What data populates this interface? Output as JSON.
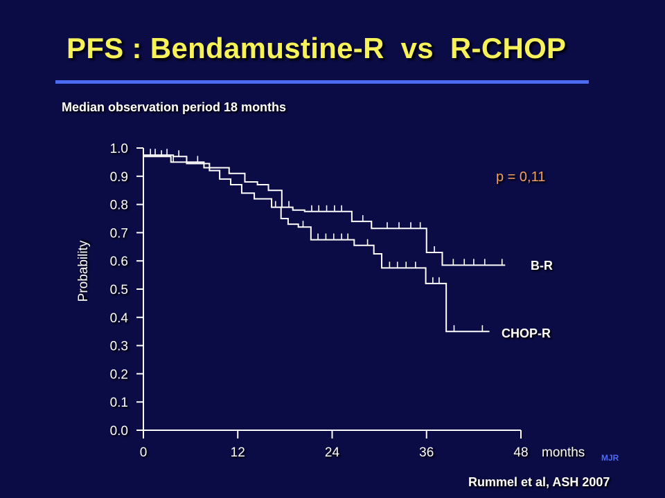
{
  "slide": {
    "title": "PFS : Bendamustine-R  vs  R-CHOP",
    "subtitle": "Median observation period 18 months",
    "source": "Rummel et al, ASH 2007",
    "initials": "MJR",
    "pvalue": "p = 0,11"
  },
  "colors": {
    "background": "#0b0b45",
    "title": "#f7f25a",
    "rule": "#4c6bf2",
    "pvalue": "#f0a060",
    "initials": "#4c6bf2",
    "curves": "#ffffff"
  },
  "chart_data": {
    "type": "line",
    "title": "",
    "xlabel": "months",
    "ylabel": "Probability",
    "xlim": [
      0,
      48
    ],
    "ylim": [
      0,
      1.0
    ],
    "x_ticks": [
      0,
      12,
      24,
      36,
      48
    ],
    "x_tick_labels": [
      "0",
      "12",
      "24",
      "36",
      "48"
    ],
    "y_ticks": [
      0.0,
      0.1,
      0.2,
      0.3,
      0.4,
      0.5,
      0.6,
      0.7,
      0.8,
      0.9,
      1.0
    ],
    "y_tick_labels": [
      "0.0",
      "0.1",
      "0.2",
      "0.3",
      "0.4",
      "0.5",
      "0.6",
      "0.7",
      "0.8",
      "0.9",
      "1.0"
    ],
    "grid": false,
    "series": [
      {
        "name": "B-R",
        "steps": [
          [
            0,
            0.97
          ],
          [
            1.8,
            0.97
          ],
          [
            3.5,
            0.95
          ],
          [
            7.7,
            0.93
          ],
          [
            10.9,
            0.91
          ],
          [
            12.9,
            0.88
          ],
          [
            14.5,
            0.87
          ],
          [
            15.9,
            0.85
          ],
          [
            17.6,
            0.79
          ],
          [
            19.0,
            0.78
          ],
          [
            20.5,
            0.775
          ],
          [
            26.5,
            0.74
          ],
          [
            29.0,
            0.715
          ],
          [
            36.0,
            0.63
          ],
          [
            38.0,
            0.585
          ],
          [
            46.0,
            0.585
          ]
        ],
        "censored": [
          [
            2.3,
            0.97
          ],
          [
            3.8,
            0.95
          ],
          [
            6.9,
            0.95
          ],
          [
            18.5,
            0.79
          ],
          [
            21.4,
            0.775
          ],
          [
            22.3,
            0.775
          ],
          [
            23.3,
            0.775
          ],
          [
            24.3,
            0.775
          ],
          [
            25.2,
            0.775
          ],
          [
            27.9,
            0.74
          ],
          [
            31.0,
            0.715
          ],
          [
            32.5,
            0.715
          ],
          [
            34.0,
            0.715
          ],
          [
            35.2,
            0.715
          ],
          [
            37.0,
            0.63
          ],
          [
            39.4,
            0.585
          ],
          [
            40.8,
            0.585
          ],
          [
            42.0,
            0.585
          ],
          [
            43.4,
            0.585
          ],
          [
            45.6,
            0.585
          ]
        ]
      },
      {
        "name": "CHOP-R",
        "steps": [
          [
            0,
            0.975
          ],
          [
            3.8,
            0.97
          ],
          [
            5.5,
            0.945
          ],
          [
            8.4,
            0.92
          ],
          [
            9.7,
            0.89
          ],
          [
            11.1,
            0.87
          ],
          [
            12.5,
            0.84
          ],
          [
            14.1,
            0.82
          ],
          [
            16.3,
            0.79
          ],
          [
            17.5,
            0.75
          ],
          [
            18.4,
            0.73
          ],
          [
            19.7,
            0.72
          ],
          [
            21.3,
            0.675
          ],
          [
            26.8,
            0.655
          ],
          [
            29.3,
            0.625
          ],
          [
            30.3,
            0.575
          ],
          [
            35.9,
            0.52
          ],
          [
            38.5,
            0.35
          ],
          [
            44.0,
            0.35
          ]
        ],
        "censored": [
          [
            0.9,
            0.975
          ],
          [
            1.5,
            0.975
          ],
          [
            3.0,
            0.975
          ],
          [
            4.5,
            0.97
          ],
          [
            16.8,
            0.79
          ],
          [
            20.3,
            0.72
          ],
          [
            22.2,
            0.675
          ],
          [
            23.2,
            0.675
          ],
          [
            24.2,
            0.675
          ],
          [
            25.2,
            0.675
          ],
          [
            26.0,
            0.675
          ],
          [
            28.5,
            0.655
          ],
          [
            31.3,
            0.575
          ],
          [
            32.3,
            0.575
          ],
          [
            33.4,
            0.575
          ],
          [
            34.6,
            0.575
          ],
          [
            36.8,
            0.52
          ],
          [
            37.6,
            0.52
          ],
          [
            39.5,
            0.35
          ],
          [
            43.1,
            0.35
          ]
        ]
      }
    ],
    "annotations": [
      {
        "text": "B-R",
        "anchor": "end-of-B-R"
      },
      {
        "text": "CHOP-R",
        "anchor": "end-of-CHOP-R"
      }
    ]
  }
}
